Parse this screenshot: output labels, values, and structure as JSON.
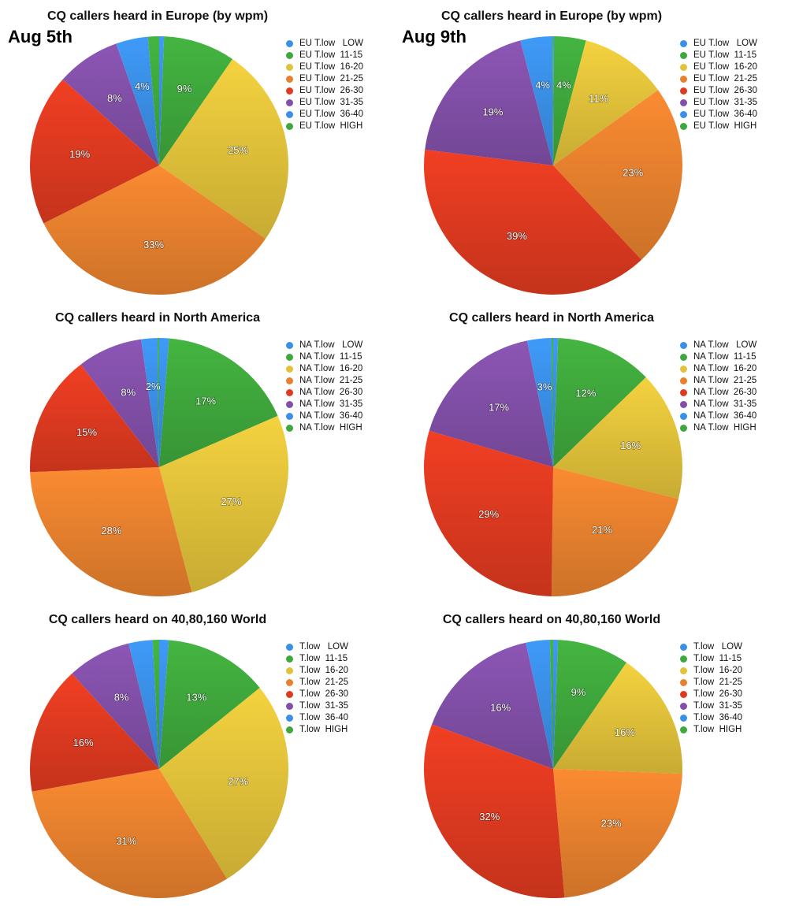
{
  "colors": {
    "LOW": "#3a8fe6",
    "11-15": "#3fa83c",
    "16-20": "#e2c23a",
    "21-25": "#e8812e",
    "26-30": "#df3a20",
    "31-35": "#8250a8",
    "36-40": "#3a8fe6",
    "HIGH": "#3fa83c"
  },
  "chart_data": [
    {
      "type": "pie",
      "title": "CQ callers heard in Europe (by wpm)",
      "date_label": "Aug 5th",
      "categories": [
        "LOW",
        "11-15",
        "16-20",
        "21-25",
        "26-30",
        "31-35",
        "36-40",
        "HIGH"
      ],
      "legend": [
        "EU T.low   LOW",
        "EU T.low  11-15",
        "EU T.low  16-20",
        "EU T.low  21-25",
        "EU T.low  26-30",
        "EU T.low  31-35",
        "EU T.low  36-40",
        "EU T.low  HIGH"
      ],
      "values": [
        0.6,
        9,
        25,
        33,
        19,
        8,
        4,
        1.4
      ],
      "data_labels": [
        "",
        "9%",
        "25%",
        "33%",
        "19%",
        "8%",
        "4%",
        ""
      ],
      "legend_position": "right"
    },
    {
      "type": "pie",
      "title": "CQ callers heard in Europe (by wpm)",
      "date_label": "Aug 9th",
      "categories": [
        "LOW",
        "11-15",
        "16-20",
        "21-25",
        "26-30",
        "31-35",
        "36-40",
        "HIGH"
      ],
      "legend": [
        "EU T.low   LOW",
        "EU T.low  11-15",
        "EU T.low  16-20",
        "EU T.low  21-25",
        "EU T.low  26-30",
        "EU T.low  31-35",
        "EU T.low  36-40",
        "EU T.low  HIGH"
      ],
      "values": [
        0.1,
        4,
        11,
        23,
        39,
        19,
        4,
        0.1
      ],
      "data_labels": [
        "",
        "4%",
        "11%",
        "23%",
        "39%",
        "19%",
        "4%",
        ""
      ],
      "legend_position": "right"
    },
    {
      "type": "pie",
      "title": "CQ callers heard in North America",
      "date_label": "",
      "categories": [
        "LOW",
        "11-15",
        "16-20",
        "21-25",
        "26-30",
        "31-35",
        "36-40",
        "HIGH"
      ],
      "legend": [
        "NA T.low   LOW",
        "NA T.low  11-15",
        "NA T.low  16-20",
        "NA T.low  21-25",
        "NA T.low  26-30",
        "NA T.low  31-35",
        "NA T.low  36-40",
        "NA T.low  HIGH"
      ],
      "values": [
        1.2,
        17,
        27,
        28,
        15,
        8,
        2,
        0.2
      ],
      "data_labels": [
        "",
        "17%",
        "27%",
        "28%",
        "15%",
        "8%",
        "2%",
        ""
      ],
      "legend_position": "right"
    },
    {
      "type": "pie",
      "title": "CQ callers heard in North America",
      "date_label": "",
      "categories": [
        "LOW",
        "11-15",
        "16-20",
        "21-25",
        "26-30",
        "31-35",
        "36-40",
        "HIGH"
      ],
      "legend": [
        "NA T.low   LOW",
        "NA T.low  11-15",
        "NA T.low  16-20",
        "NA T.low  21-25",
        "NA T.low  26-30",
        "NA T.low  31-35",
        "NA T.low  36-40",
        "NA T.low  HIGH"
      ],
      "values": [
        0.6,
        12,
        16,
        21,
        29,
        17,
        3,
        0.2
      ],
      "data_labels": [
        "",
        "12%",
        "16%",
        "21%",
        "29%",
        "17%",
        "3%",
        ""
      ],
      "legend_position": "right"
    },
    {
      "type": "pie",
      "title": "CQ callers heard on 40,80,160 World",
      "date_label": "",
      "categories": [
        "LOW",
        "11-15",
        "16-20",
        "21-25",
        "26-30",
        "31-35",
        "36-40",
        "HIGH"
      ],
      "legend": [
        "T.low   LOW",
        "T.low  11-15",
        "T.low  16-20",
        "T.low  21-25",
        "T.low  26-30",
        "T.low  31-35",
        "T.low  36-40",
        "T.low  HIGH"
      ],
      "values": [
        1.2,
        13,
        27,
        31,
        16,
        8,
        3,
        0.8
      ],
      "data_labels": [
        "",
        "13%",
        "27%",
        "31%",
        "16%",
        "8%",
        "",
        ""
      ],
      "legend_position": "right"
    },
    {
      "type": "pie",
      "title": "CQ callers heard on 40,80,160 World",
      "date_label": "",
      "categories": [
        "LOW",
        "11-15",
        "16-20",
        "21-25",
        "26-30",
        "31-35",
        "36-40",
        "HIGH"
      ],
      "legend": [
        "T.low   LOW",
        "T.low  11-15",
        "T.low  16-20",
        "T.low  21-25",
        "T.low  26-30",
        "T.low  31-35",
        "T.low  36-40",
        "T.low  HIGH"
      ],
      "values": [
        0.6,
        9,
        16,
        23,
        32,
        16,
        3,
        0.4
      ],
      "data_labels": [
        "",
        "9%",
        "16%",
        "23%",
        "32%",
        "16%",
        "",
        ""
      ],
      "legend_position": "right"
    }
  ]
}
